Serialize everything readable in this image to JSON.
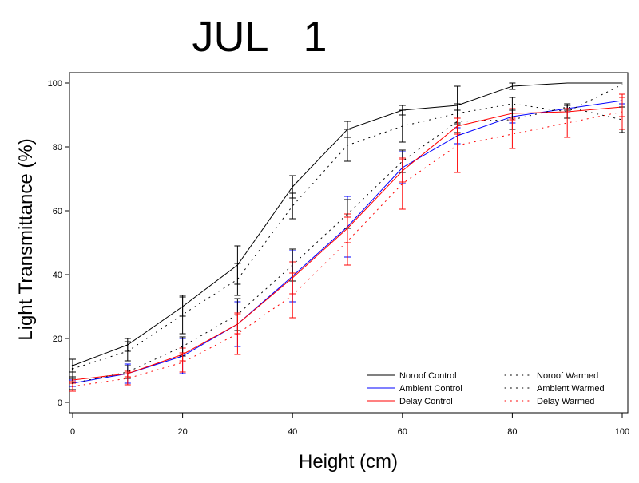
{
  "chart_data": {
    "type": "line",
    "title": "JUL   1",
    "xlabel": "Height (cm)",
    "ylabel": "Light Transmittance (%)",
    "xlim": [
      0,
      100
    ],
    "ylim": [
      0,
      100
    ],
    "xticks": [
      0,
      20,
      40,
      60,
      80,
      100
    ],
    "yticks": [
      0,
      20,
      40,
      60,
      80,
      100
    ],
    "x": [
      0,
      10,
      20,
      30,
      40,
      50,
      60,
      70,
      80,
      90,
      100
    ],
    "grid": false,
    "legend_position": "bottom-right",
    "series": [
      {
        "name": "Noroof Control",
        "color": "#000000",
        "style": "solid",
        "values": [
          11.5,
          18,
          30,
          43,
          67.5,
          85.5,
          91.5,
          93,
          99,
          100,
          100
        ],
        "err": [
          2,
          2,
          3,
          6,
          3.5,
          2.5,
          1.5,
          6,
          1,
          0,
          0
        ]
      },
      {
        "name": "Ambient Control",
        "color": "#0000ff",
        "style": "solid",
        "values": [
          6,
          9,
          14.5,
          24.5,
          39.5,
          55,
          73.5,
          83.5,
          89.5,
          92,
          94.5
        ],
        "err": [
          1,
          3,
          5.5,
          7,
          8,
          9.5,
          5,
          2.5,
          2,
          1,
          1
        ]
      },
      {
        "name": "Delay Control",
        "color": "#ff0000",
        "style": "solid",
        "values": [
          7,
          9,
          15,
          24.5,
          39,
          54.5,
          72.5,
          86.5,
          90.5,
          91,
          92.5
        ],
        "err": [
          1,
          1,
          2,
          3,
          5,
          4.5,
          3.5,
          2.5,
          1.5,
          2,
          3
        ]
      },
      {
        "name": "Noroof Warmed",
        "color": "#000000",
        "style": "dotted",
        "values": [
          10.5,
          16,
          27.5,
          38.5,
          61.5,
          80.5,
          86.5,
          90.5,
          93.5,
          91,
          99.5
        ],
        "err": [
          3,
          3,
          6,
          5,
          4,
          5,
          5,
          3,
          2,
          2,
          0
        ]
      },
      {
        "name": "Ambient Warmed",
        "color": "#000000",
        "style": "dotted",
        "values": [
          6,
          9.5,
          17.5,
          27.5,
          43,
          59,
          75.5,
          88,
          88.5,
          92.5,
          88.5
        ],
        "err": [
          2,
          2,
          3,
          5,
          5,
          4.5,
          3.5,
          3.5,
          3,
          1,
          4
        ]
      },
      {
        "name": "Delay Warmed",
        "color": "#ff0000",
        "style": "dotted",
        "values": [
          5,
          7.5,
          12.5,
          21.5,
          33.5,
          50.5,
          68.5,
          80.5,
          84,
          87.5,
          91
        ],
        "err": [
          1.5,
          2,
          3,
          6.5,
          7,
          7.5,
          8,
          8.5,
          4.5,
          4.5,
          5.5
        ]
      }
    ]
  }
}
